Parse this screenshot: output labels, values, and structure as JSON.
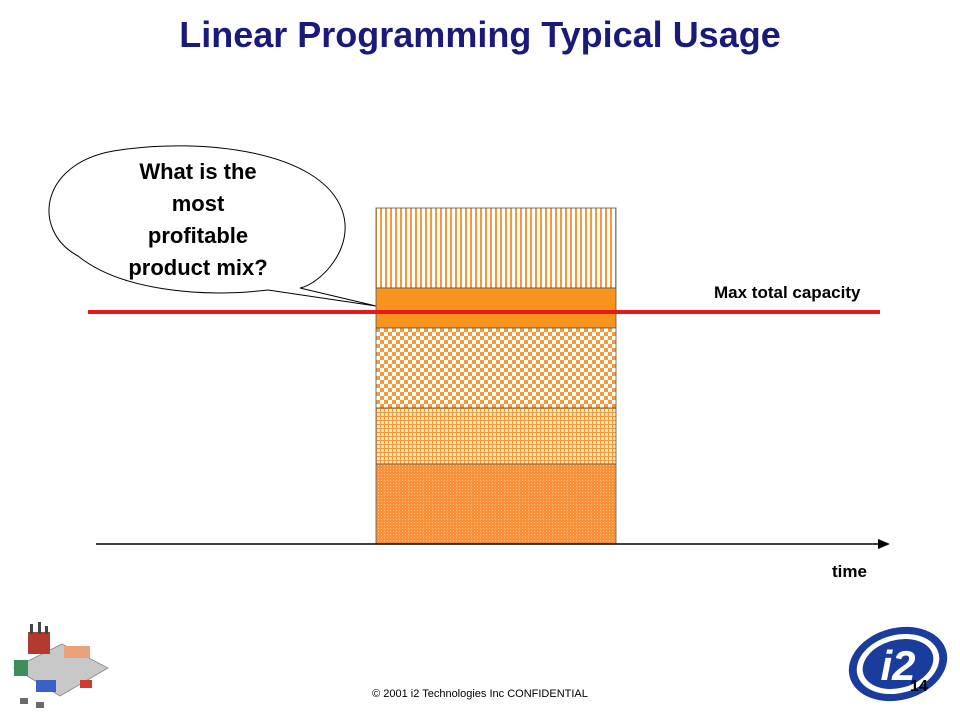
{
  "title": "Linear Programming Typical Usage",
  "bubble": {
    "lines": [
      "What is the",
      "most",
      "profitable",
      "product mix?"
    ]
  },
  "capacity_label": "Max total capacity",
  "axis_label": "time",
  "footer": "© 2001 i2 Technologies Inc CONFIDENTIAL",
  "page_number": "14",
  "logo_text": "i2",
  "colors": {
    "title": "#1a1a7a",
    "capacity_line": "#e8191a",
    "bar_orange": "#f7941d",
    "bar_pattern": "#f39a3a",
    "logo_blue": "#1a3c9c"
  },
  "stack_segments": [
    "vertical-stripes",
    "solid",
    "checkerboard",
    "fine-grid",
    "dotted"
  ]
}
